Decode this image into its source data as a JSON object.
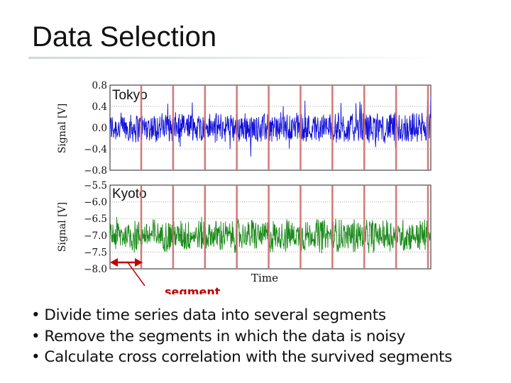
{
  "slide": {
    "title": "Data Selection",
    "bullets": [
      "Divide time series data into several segments",
      "Remove the segments in which the data is noisy",
      "Calculate cross correlation with the survived segments"
    ]
  },
  "chart_data": [
    {
      "type": "line",
      "title": "Tokyo",
      "ylabel": "Signal [V]",
      "xlabel": "",
      "ylim": [
        -0.8,
        0.8
      ],
      "yticks": [
        0.8,
        0.4,
        0.0,
        -0.4,
        -0.8
      ],
      "yticklabels": [
        "0.8",
        "0.4",
        "0.0",
        "−0.4",
        "−0.8"
      ],
      "series": [
        {
          "color": "#1010d8",
          "mean": 0.0,
          "amplitude": 0.3,
          "peak_excursions": [
            0.6,
            -0.55
          ]
        }
      ],
      "grid": "dotted horizontal",
      "legend": "none"
    },
    {
      "type": "line",
      "title": "Kyoto",
      "ylabel": "Signal [V]",
      "xlabel": "Time",
      "ylim": [
        -8.0,
        -5.5
      ],
      "yticks": [
        -5.5,
        -6.0,
        -6.5,
        -7.0,
        -7.5,
        -8.0
      ],
      "yticklabels": [
        "−5.5",
        "−6.0",
        "−6.5",
        "−7.0",
        "−7.5",
        "−8.0"
      ],
      "series": [
        {
          "color": "#1a8a1a",
          "mean": -7.0,
          "amplitude": 0.5,
          "peak_excursions": [
            -6.3,
            -7.7
          ]
        }
      ],
      "grid": "dotted horizontal",
      "legend": "none"
    }
  ],
  "segments": {
    "boundaries": [
      0,
      1,
      2,
      3,
      4,
      5,
      6,
      7,
      8,
      9
    ],
    "count": 10,
    "line_color": "#d06a6a",
    "label": "segment",
    "label_color": "#c00000",
    "arrow_color": "#c00000"
  }
}
